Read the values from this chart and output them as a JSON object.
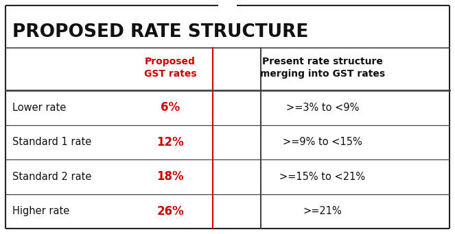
{
  "title": "PROPOSED RATE STRUCTURE",
  "col1_header_line1": "Proposed",
  "col1_header_line2": "GST rates",
  "col2_header_line1": "Present rate structure",
  "col2_header_line2": "merging into GST rates",
  "rows": [
    {
      "label": "Lower rate",
      "proposed": "6%",
      "present": ">=3% to <9%"
    },
    {
      "label": "Standard 1 rate",
      "proposed": "12%",
      "present": ">=9% to <15%"
    },
    {
      "label": "Standard 2 rate",
      "proposed": "18%",
      "present": ">=15% to <21%"
    },
    {
      "label": "Higher rate",
      "proposed": "26%",
      "present": ">=21%"
    }
  ],
  "bg_color": "#ffffff",
  "border_color": "#222222",
  "title_color": "#111111",
  "proposed_color": "#cc0000",
  "text_color": "#111111",
  "header_proposed_color": "#cc0000",
  "header_present_color": "#111111",
  "line_color": "#444444",
  "col_divider_color": "#cc0000",
  "col_divider2_color": "#444444",
  "title_fontsize": 19,
  "header_fontsize": 10,
  "row_fontsize": 10.5,
  "proposed_fontsize": 12
}
